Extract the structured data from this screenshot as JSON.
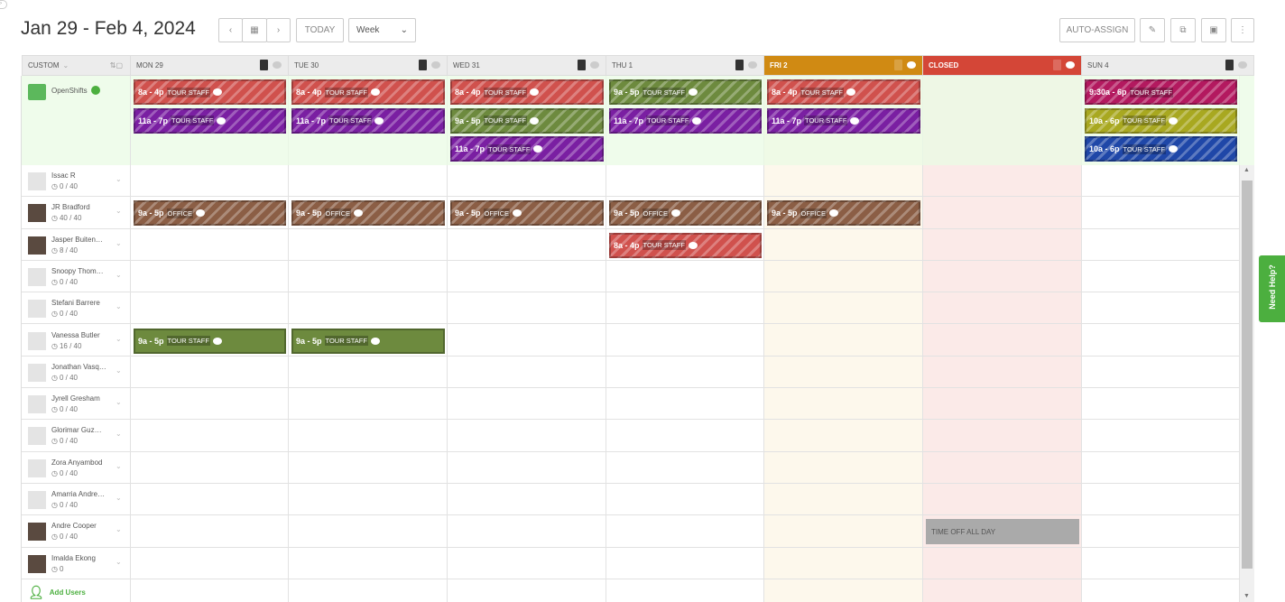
{
  "header": {
    "title": "Jan 29 - Feb 4, 2024",
    "today": "TODAY",
    "view": "Week",
    "auto_assign": "AUTO-ASSIGN"
  },
  "columns": {
    "sidebar_label": "CUSTOM",
    "days": [
      {
        "label": "MON 29",
        "bg": "#ececec",
        "color": "#555",
        "body": "#ffffff"
      },
      {
        "label": "TUE 30",
        "bg": "#ececec",
        "color": "#555",
        "body": "#ffffff"
      },
      {
        "label": "WED 31",
        "bg": "#ececec",
        "color": "#555",
        "body": "#ffffff"
      },
      {
        "label": "THU 1",
        "bg": "#ececec",
        "color": "#555",
        "body": "#ffffff"
      },
      {
        "label": "FRI 2",
        "bg": "#d08a13",
        "color": "#fff",
        "body": "#fdf8ec"
      },
      {
        "label": "CLOSED",
        "bg": "#d44637",
        "color": "#fff",
        "body": "#fbeae8"
      },
      {
        "label": "SUN 4",
        "bg": "#ececec",
        "color": "#555",
        "body": "#ffffff"
      }
    ]
  },
  "colors": {
    "red": "#d0514d",
    "purple": "#7a1fa2",
    "green": "#6d8a3e",
    "brown": "#8b5e45",
    "magenta": "#b3195f",
    "olive": "#a8a820",
    "blue": "#1f47a8",
    "openshift_bg": "#eafbe4",
    "accent": "#4caf3f"
  },
  "open_shifts": {
    "label": "OpenShifts",
    "shifts": [
      {
        "day": 0,
        "slot": 0,
        "time": "8a - 4p",
        "pos": "TOUR STAFF",
        "color": "red"
      },
      {
        "day": 0,
        "slot": 1,
        "time": "11a - 7p",
        "pos": "TOUR STAFF",
        "color": "purple"
      },
      {
        "day": 1,
        "slot": 0,
        "time": "8a - 4p",
        "pos": "TOUR STAFF",
        "color": "red"
      },
      {
        "day": 1,
        "slot": 1,
        "time": "11a - 7p",
        "pos": "TOUR STAFF",
        "color": "purple"
      },
      {
        "day": 2,
        "slot": 0,
        "time": "8a - 4p",
        "pos": "TOUR STAFF",
        "color": "red"
      },
      {
        "day": 2,
        "slot": 1,
        "time": "9a - 5p",
        "pos": "TOUR STAFF",
        "color": "green"
      },
      {
        "day": 2,
        "slot": 2,
        "time": "11a - 7p",
        "pos": "TOUR STAFF",
        "color": "purple"
      },
      {
        "day": 3,
        "slot": 0,
        "time": "9a - 5p",
        "pos": "TOUR STAFF",
        "color": "green"
      },
      {
        "day": 3,
        "slot": 1,
        "time": "11a - 7p",
        "pos": "TOUR STAFF",
        "color": "purple"
      },
      {
        "day": 4,
        "slot": 0,
        "time": "8a - 4p",
        "pos": "TOUR STAFF",
        "color": "red"
      },
      {
        "day": 4,
        "slot": 1,
        "time": "11a - 7p",
        "pos": "TOUR STAFF",
        "color": "purple"
      },
      {
        "day": 6,
        "slot": 0,
        "time": "9:30a - 6p",
        "pos": "TOUR STAFF",
        "color": "magenta",
        "nocomment": true
      },
      {
        "day": 6,
        "slot": 1,
        "time": "10a - 6p",
        "pos": "TOUR STAFF",
        "color": "olive"
      },
      {
        "day": 6,
        "slot": 2,
        "time": "10a - 6p",
        "pos": "TOUR STAFF",
        "color": "blue"
      }
    ]
  },
  "employees": [
    {
      "name": "Issac R",
      "hours": "0 / 40",
      "shifts": []
    },
    {
      "name": "JR Bradford",
      "hours": "40 / 40",
      "photo": true,
      "shifts": [
        {
          "day": 0,
          "time": "9a - 5p",
          "pos": "OFFICE",
          "color": "brown",
          "striped": true
        },
        {
          "day": 1,
          "time": "9a - 5p",
          "pos": "OFFICE",
          "color": "brown",
          "striped": true
        },
        {
          "day": 2,
          "time": "9a - 5p",
          "pos": "OFFICE",
          "color": "brown",
          "striped": true
        },
        {
          "day": 3,
          "time": "9a - 5p",
          "pos": "OFFICE",
          "color": "brown",
          "striped": true
        },
        {
          "day": 4,
          "time": "9a - 5p",
          "pos": "OFFICE",
          "color": "brown",
          "striped": true
        }
      ]
    },
    {
      "name": "Jasper Buiten…",
      "hours": "8 / 40",
      "photo": true,
      "shifts": [
        {
          "day": 3,
          "time": "8a - 4p",
          "pos": "TOUR STAFF",
          "color": "red",
          "striped": true
        }
      ]
    },
    {
      "name": "Snoopy Thom…",
      "hours": "0 / 40",
      "shifts": []
    },
    {
      "name": "Stefani Barrere",
      "hours": "0 / 40",
      "shifts": []
    },
    {
      "name": "Vanessa Butler",
      "hours": "16 / 40",
      "shifts": [
        {
          "day": 0,
          "time": "9a - 5p",
          "pos": "TOUR STAFF",
          "color": "green"
        },
        {
          "day": 1,
          "time": "9a - 5p",
          "pos": "TOUR STAFF",
          "color": "green"
        }
      ]
    },
    {
      "name": "Jonathan Vasq…",
      "hours": "0 / 40",
      "shifts": []
    },
    {
      "name": "Jyrell Gresham",
      "hours": "0 / 40",
      "shifts": []
    },
    {
      "name": "Glorimar Guz…",
      "hours": "0 / 40",
      "shifts": []
    },
    {
      "name": "Zora Anyambod",
      "hours": "0 / 40",
      "shifts": []
    },
    {
      "name": "Amarria Andre…",
      "hours": "0 / 40",
      "shifts": []
    },
    {
      "name": "Andre Cooper",
      "hours": "0 / 40",
      "photo": true,
      "timeoff": {
        "day": 5,
        "label": "TIME OFF ALL DAY"
      },
      "shifts": []
    },
    {
      "name": "Imalda Ekong",
      "hours": "0",
      "photo": true,
      "shifts": []
    }
  ],
  "add_users": "Add Users",
  "help": "Need Help?"
}
